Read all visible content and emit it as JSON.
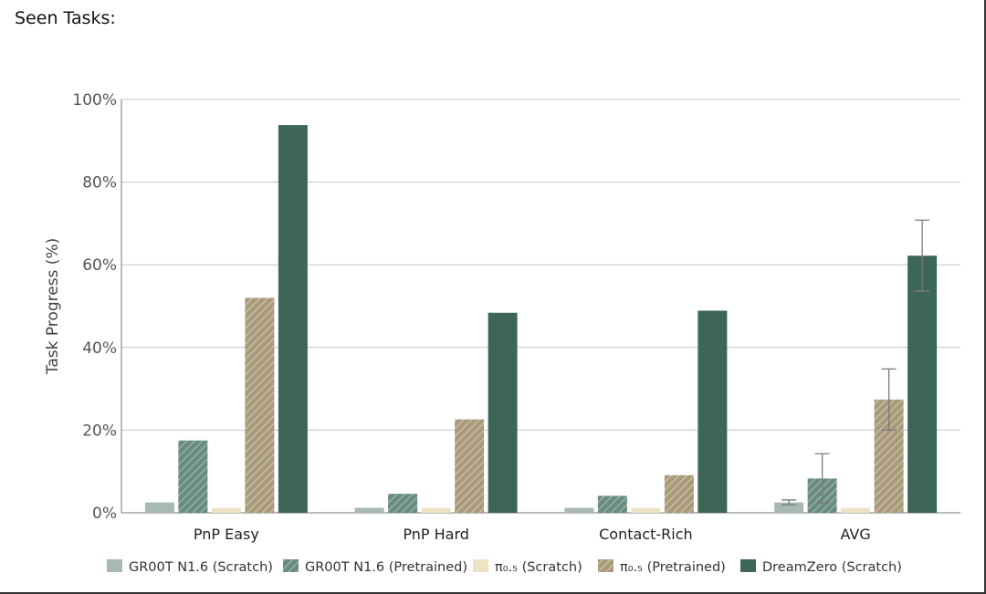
{
  "heading": "Seen Tasks:",
  "chart_data": {
    "type": "bar",
    "title": "",
    "xlabel": "",
    "ylabel": "Task Progress (%)",
    "ylim": [
      0,
      100
    ],
    "yticks": [
      "0%",
      "20%",
      "40%",
      "60%",
      "80%",
      "100%"
    ],
    "grid": true,
    "legend_position": "bottom",
    "categories": [
      "PnP Easy",
      "PnP Hard",
      "Contact-Rich",
      "AVG"
    ],
    "series": [
      {
        "name": "GR00T N1.6 (Scratch)",
        "values": [
          2.5,
          1.2,
          1.2,
          2.5
        ],
        "error": [
          null,
          null,
          null,
          0.6
        ],
        "color": "#a7b9b1",
        "hatch": false
      },
      {
        "name": "GR00T N1.6 (Pretrained)",
        "values": [
          17.5,
          4.6,
          4.1,
          8.3
        ],
        "error": [
          null,
          null,
          null,
          6.0
        ],
        "color": "#6a8c80",
        "hatch": true
      },
      {
        "name": "π₀.₅ (Scratch)",
        "values": [
          1.2,
          1.2,
          1.2,
          1.2
        ],
        "error": [
          null,
          null,
          null,
          null
        ],
        "color": "#ede3c5",
        "hatch": false
      },
      {
        "name": "π₀.₅ (Pretrained)",
        "values": [
          52.0,
          22.6,
          9.1,
          27.4
        ],
        "error": [
          null,
          null,
          null,
          7.4
        ],
        "color": "#a89a7b",
        "hatch": true
      },
      {
        "name": "DreamZero (Scratch)",
        "values": [
          93.8,
          48.4,
          48.9,
          62.2
        ],
        "error": [
          null,
          null,
          null,
          8.6
        ],
        "color": "#3d6657",
        "hatch": false
      }
    ]
  }
}
